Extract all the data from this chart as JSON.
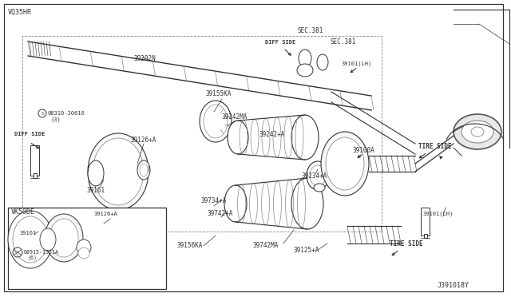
{
  "bg_color": "#ffffff",
  "border_color": "#333333",
  "line_color": "#333333",
  "text_color": "#333333",
  "diagram_id": "J391018Y",
  "engine_label_1": "VQ35HR",
  "engine_label_2": "VK50DE"
}
